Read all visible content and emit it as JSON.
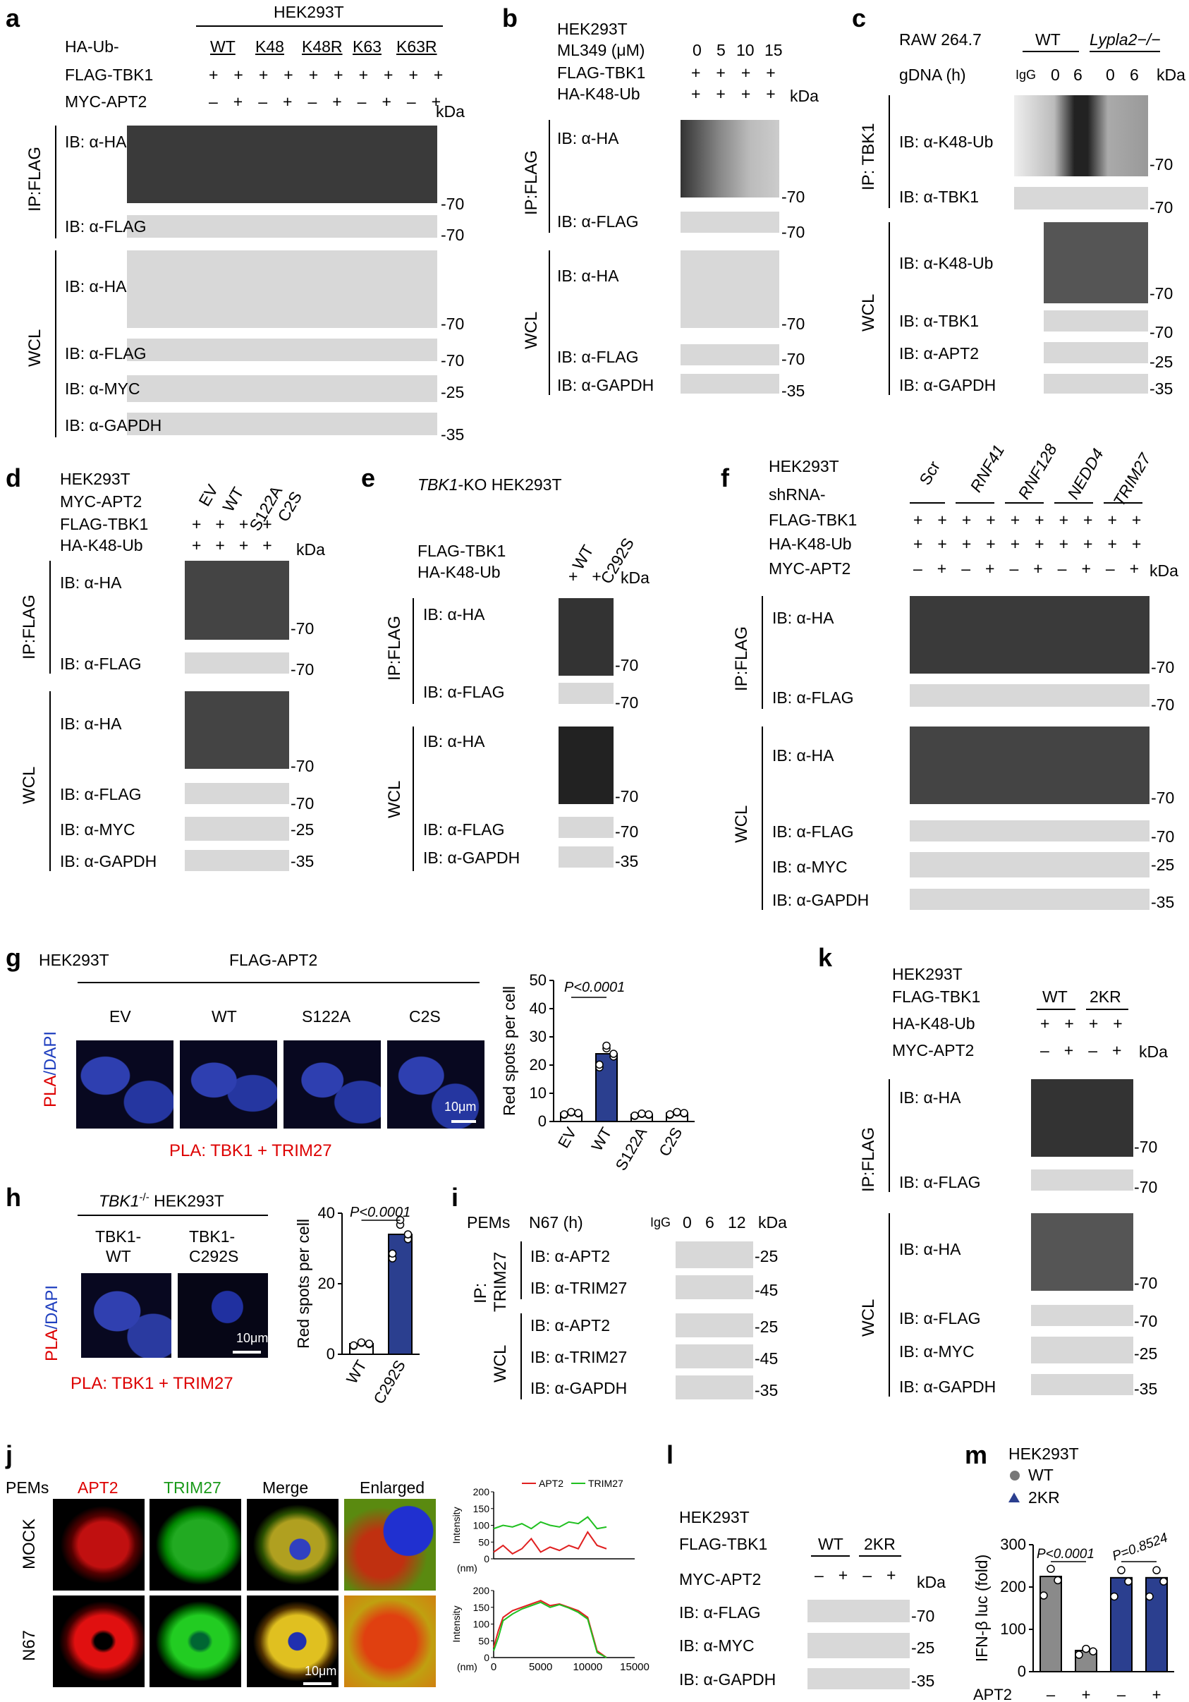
{
  "panels": [
    "a",
    "b",
    "c",
    "d",
    "e",
    "f",
    "g",
    "h",
    "i",
    "j",
    "k",
    "l",
    "m"
  ],
  "common": {
    "kda": "kDa",
    "plus": "+",
    "minus": "–",
    "ipflag": "IP:FLAG",
    "wcl": "WCL",
    "ib_ha": "IB: α-HA",
    "ib_flag": "IB: α-FLAG",
    "ib_myc": "IB: α-MYC",
    "ib_gapdh": "IB: α-GAPDH",
    "m70": "70",
    "m35": "35",
    "m25": "25",
    "m45": "45"
  },
  "a": {
    "cell": "HEK293T",
    "row1": "HA-Ub-",
    "row2": "FLAG-TBK1",
    "row3": "MYC-APT2",
    "lanes": [
      "WT",
      "K48",
      "K48R",
      "K63",
      "K63R"
    ]
  },
  "b": {
    "cell": "HEK293T",
    "row1": "ML349 (μM)",
    "row2": "FLAG-TBK1",
    "row3": "HA-K48-Ub",
    "doses": [
      "0",
      "5",
      "10",
      "15"
    ]
  },
  "c": {
    "cell": "RAW 264.7",
    "row1": "gDNA (h)",
    "groups": [
      "WT",
      "Lypla2−/−"
    ],
    "lanes": [
      "IgG",
      "0",
      "6",
      "0",
      "6"
    ],
    "ip": "IP: TBK1",
    "ib_k48": "IB: α-K48-Ub",
    "ib_tbk1": "IB: α-TBK1",
    "ib_apt2": "IB: α-APT2"
  },
  "d": {
    "cell": "HEK293T",
    "row1": "MYC-APT2",
    "row2": "FLAG-TBK1",
    "row3": "HA-K48-Ub",
    "lanes": [
      "EV",
      "WT",
      "S122A",
      "C2S"
    ]
  },
  "e": {
    "cell_pre": "TBK1",
    "cell_post": "-KO HEK293T",
    "row1": "FLAG-TBK1",
    "row2": "HA-K48-Ub",
    "lanes": [
      "WT",
      "C292S"
    ]
  },
  "f": {
    "cell": "HEK293T",
    "row1": "shRNA-",
    "row2": "FLAG-TBK1",
    "row3": "HA-K48-Ub",
    "row4": "MYC-APT2",
    "lanes": [
      "Scr",
      "RNF41",
      "RNF128",
      "NEDD4",
      "TRIM27"
    ]
  },
  "g": {
    "cell": "HEK293T",
    "construct": "FLAG-APT2",
    "conds": [
      "EV",
      "WT",
      "S122A",
      "C2S"
    ],
    "ylab_pla": "PLA",
    "ylab_dapi": "/DAPI",
    "scale": "10μm",
    "caption": "PLA: TBK1 + TRIM27",
    "chart_data": {
      "type": "bar",
      "categories": [
        "EV",
        "WT",
        "S122A",
        "C2S"
      ],
      "values": [
        3,
        24,
        2.5,
        3
      ],
      "ylabel": "Red spots per cell",
      "ylim": [
        0,
        50
      ],
      "yticks": [
        0,
        10,
        20,
        30,
        40,
        50
      ],
      "pval": "P<0.0001"
    }
  },
  "h": {
    "cell_pre": "TBK1",
    "cell_sup": "-/-",
    "cell_post": " HEK293T",
    "conds": [
      "TBK1-\nWT",
      "TBK1-\nC292S"
    ],
    "cond1a": "TBK1-",
    "cond1b": "WT",
    "cond2a": "TBK1-",
    "cond2b": "C292S",
    "scale": "10μm",
    "caption": "PLA: TBK1 + TRIM27",
    "chart_data": {
      "type": "bar",
      "categories": [
        "WT",
        "C292S"
      ],
      "values": [
        3,
        34
      ],
      "ylabel": "Red spots per cell",
      "ylim": [
        0,
        40
      ],
      "yticks": [
        0,
        20,
        40
      ],
      "pval": "P<0.0001"
    }
  },
  "i": {
    "cell": "PEMs",
    "row1": "N67 (h)",
    "lanes": [
      "IgG",
      "0",
      "6",
      "12"
    ],
    "ip": "IP:",
    "ip2": "TRIM27",
    "ib_apt2": "IB: α-APT2",
    "ib_trim": "IB: α-TRIM27"
  },
  "j": {
    "cell": "PEMs",
    "cols": [
      "APT2",
      "TRIM27",
      "Merge",
      "Enlarged"
    ],
    "rows": [
      "MOCK",
      "N67"
    ],
    "scale": "10μm",
    "chart_data": [
      {
        "type": "line",
        "legend": [
          "APT2",
          "TRIM27"
        ],
        "xlabel": "(nm)",
        "ylabel": "Intensity",
        "xlim": [
          0,
          15000
        ],
        "ylim": [
          0,
          200
        ],
        "yticks": [
          0,
          50,
          100,
          150,
          200
        ],
        "xticks": [
          0,
          5000,
          10000,
          15000
        ],
        "series": [
          {
            "name": "APT2",
            "x": [
              0,
              1000,
              2000,
              3000,
              4000,
              5000,
              6000,
              7000,
              8000,
              9000,
              10000,
              11000,
              12000
            ],
            "values": [
              20,
              40,
              15,
              30,
              60,
              20,
              35,
              25,
              40,
              30,
              80,
              40,
              30
            ]
          },
          {
            "name": "TRIM27",
            "x": [
              0,
              1000,
              2000,
              3000,
              4000,
              5000,
              6000,
              7000,
              8000,
              9000,
              10000,
              11000,
              12000
            ],
            "values": [
              90,
              100,
              95,
              105,
              90,
              110,
              100,
              95,
              110,
              105,
              125,
              90,
              95
            ]
          }
        ]
      },
      {
        "type": "line",
        "xlabel": "(nm)",
        "ylabel": "Intensity",
        "xlim": [
          0,
          15000
        ],
        "ylim": [
          0,
          200
        ],
        "yticks": [
          0,
          50,
          100,
          150,
          200
        ],
        "xticks": [
          0,
          5000,
          10000,
          15000
        ],
        "series": [
          {
            "name": "APT2",
            "x": [
              0,
              500,
              1000,
              2000,
              3000,
              4000,
              5000,
              6000,
              7000,
              8000,
              9000,
              10000,
              11000,
              12000
            ],
            "values": [
              30,
              80,
              120,
              140,
              150,
              160,
              170,
              155,
              160,
              150,
              140,
              120,
              20,
              0
            ]
          },
          {
            "name": "TRIM27",
            "x": [
              0,
              500,
              1000,
              2000,
              3000,
              4000,
              5000,
              6000,
              7000,
              8000,
              9000,
              10000,
              11000,
              12000
            ],
            "values": [
              20,
              60,
              110,
              130,
              145,
              155,
              165,
              150,
              158,
              148,
              135,
              115,
              15,
              0
            ]
          }
        ]
      }
    ]
  },
  "k": {
    "cell": "HEK293T",
    "row1": "FLAG-TBK1",
    "row2": "HA-K48-Ub",
    "row3": "MYC-APT2",
    "groups": [
      "WT",
      "2KR"
    ]
  },
  "l": {
    "cell": "HEK293T",
    "row1": "FLAG-TBK1",
    "row2": "MYC-APT2",
    "groups": [
      "WT",
      "2KR"
    ]
  },
  "m": {
    "cell": "HEK293T",
    "legend": [
      "WT",
      "2KR"
    ],
    "xrow": "APT2",
    "chart_data": {
      "type": "bar",
      "categories": [
        "WT −",
        "WT +",
        "2KR −",
        "2KR +"
      ],
      "values": [
        225,
        50,
        222,
        222
      ],
      "ylabel": "IFN-β luc (fold)",
      "ylim": [
        0,
        300
      ],
      "yticks": [
        0,
        100,
        200,
        300
      ],
      "pvals": [
        "P<0.0001",
        "P=0.8524"
      ]
    }
  }
}
